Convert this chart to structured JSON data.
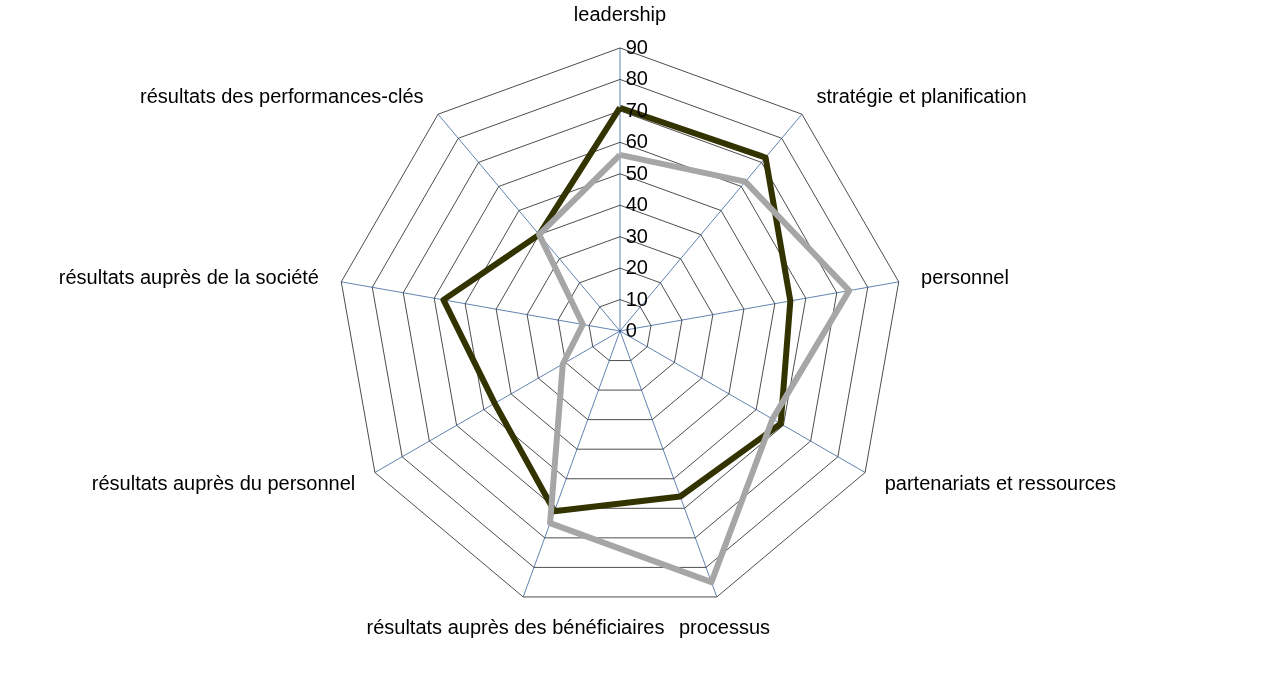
{
  "chart_data": {
    "type": "radar",
    "categories": [
      "leadership",
      "stratégie et planification",
      "personnel",
      "partenariats et ressources",
      "processus",
      "résultats auprès des bénéficiaires",
      "résultats auprès du personnel",
      "résultats auprès de la société",
      "résultats des performances-clés"
    ],
    "series": [
      {
        "color": "#333300",
        "values": [
          71,
          72,
          55,
          59,
          56,
          61,
          46,
          57,
          40
        ]
      },
      {
        "color": "#a6a6a6",
        "values": [
          56,
          62,
          74,
          56,
          85,
          65,
          21,
          12,
          40
        ]
      }
    ],
    "ylim": [
      0,
      90
    ],
    "yticks": [
      0,
      10,
      20,
      30,
      40,
      50,
      60,
      70,
      80,
      90
    ],
    "grid": true
  }
}
